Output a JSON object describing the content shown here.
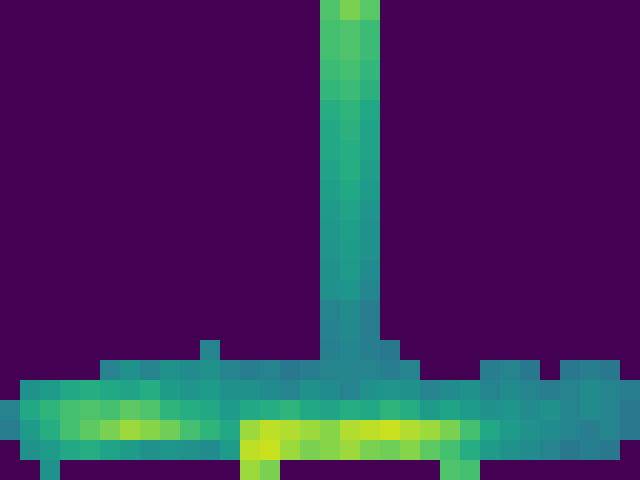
{
  "chart_data": {
    "type": "heatmap",
    "color": "viridis",
    "zlim": [
      0,
      1
    ],
    "tick_labels": false,
    "cells": [
      [
        null,
        null,
        null,
        null,
        null,
        null,
        null,
        null,
        null,
        null,
        null,
        null,
        null,
        null,
        null,
        null,
        0.72,
        0.8,
        0.74,
        null,
        null,
        null,
        null,
        null,
        null,
        null,
        null,
        null,
        null,
        null,
        null,
        null
      ],
      [
        null,
        null,
        null,
        null,
        null,
        null,
        null,
        null,
        null,
        null,
        null,
        null,
        null,
        null,
        null,
        null,
        0.7,
        0.72,
        0.68,
        null,
        null,
        null,
        null,
        null,
        null,
        null,
        null,
        null,
        null,
        null,
        null,
        null
      ],
      [
        null,
        null,
        null,
        null,
        null,
        null,
        null,
        null,
        null,
        null,
        null,
        null,
        null,
        null,
        null,
        null,
        0.7,
        0.72,
        0.68,
        null,
        null,
        null,
        null,
        null,
        null,
        null,
        null,
        null,
        null,
        null,
        null,
        null
      ],
      [
        null,
        null,
        null,
        null,
        null,
        null,
        null,
        null,
        null,
        null,
        null,
        null,
        null,
        null,
        null,
        null,
        0.68,
        0.7,
        0.66,
        null,
        null,
        null,
        null,
        null,
        null,
        null,
        null,
        null,
        null,
        null,
        null,
        null
      ],
      [
        null,
        null,
        null,
        null,
        null,
        null,
        null,
        null,
        null,
        null,
        null,
        null,
        null,
        null,
        null,
        null,
        0.66,
        0.68,
        0.64,
        null,
        null,
        null,
        null,
        null,
        null,
        null,
        null,
        null,
        null,
        null,
        null,
        null
      ],
      [
        null,
        null,
        null,
        null,
        null,
        null,
        null,
        null,
        null,
        null,
        null,
        null,
        null,
        null,
        null,
        null,
        0.62,
        0.65,
        0.6,
        null,
        null,
        null,
        null,
        null,
        null,
        null,
        null,
        null,
        null,
        null,
        null,
        null
      ],
      [
        null,
        null,
        null,
        null,
        null,
        null,
        null,
        null,
        null,
        null,
        null,
        null,
        null,
        null,
        null,
        null,
        0.6,
        0.64,
        0.58,
        null,
        null,
        null,
        null,
        null,
        null,
        null,
        null,
        null,
        null,
        null,
        null,
        null
      ],
      [
        null,
        null,
        null,
        null,
        null,
        null,
        null,
        null,
        null,
        null,
        null,
        null,
        null,
        null,
        null,
        null,
        0.6,
        0.62,
        0.58,
        null,
        null,
        null,
        null,
        null,
        null,
        null,
        null,
        null,
        null,
        null,
        null,
        null
      ],
      [
        null,
        null,
        null,
        null,
        null,
        null,
        null,
        null,
        null,
        null,
        null,
        null,
        null,
        null,
        null,
        null,
        0.58,
        0.62,
        0.56,
        null,
        null,
        null,
        null,
        null,
        null,
        null,
        null,
        null,
        null,
        null,
        null,
        null
      ],
      [
        null,
        null,
        null,
        null,
        null,
        null,
        null,
        null,
        null,
        null,
        null,
        null,
        null,
        null,
        null,
        null,
        0.56,
        0.6,
        0.55,
        null,
        null,
        null,
        null,
        null,
        null,
        null,
        null,
        null,
        null,
        null,
        null,
        null
      ],
      [
        null,
        null,
        null,
        null,
        null,
        null,
        null,
        null,
        null,
        null,
        null,
        null,
        null,
        null,
        null,
        null,
        0.55,
        0.58,
        0.52,
        null,
        null,
        null,
        null,
        null,
        null,
        null,
        null,
        null,
        null,
        null,
        null,
        null
      ],
      [
        null,
        null,
        null,
        null,
        null,
        null,
        null,
        null,
        null,
        null,
        null,
        null,
        null,
        null,
        null,
        null,
        0.53,
        0.56,
        0.5,
        null,
        null,
        null,
        null,
        null,
        null,
        null,
        null,
        null,
        null,
        null,
        null,
        null
      ],
      [
        null,
        null,
        null,
        null,
        null,
        null,
        null,
        null,
        null,
        null,
        null,
        null,
        null,
        null,
        null,
        null,
        0.52,
        0.55,
        0.5,
        null,
        null,
        null,
        null,
        null,
        null,
        null,
        null,
        null,
        null,
        null,
        null,
        null
      ],
      [
        null,
        null,
        null,
        null,
        null,
        null,
        null,
        null,
        null,
        null,
        null,
        null,
        null,
        null,
        null,
        null,
        0.5,
        0.54,
        0.48,
        null,
        null,
        null,
        null,
        null,
        null,
        null,
        null,
        null,
        null,
        null,
        null,
        null
      ],
      [
        null,
        null,
        null,
        null,
        null,
        null,
        null,
        null,
        null,
        null,
        null,
        null,
        null,
        null,
        null,
        null,
        0.5,
        0.52,
        0.46,
        null,
        null,
        null,
        null,
        null,
        null,
        null,
        null,
        null,
        null,
        null,
        null,
        null
      ],
      [
        null,
        null,
        null,
        null,
        null,
        null,
        null,
        null,
        null,
        null,
        null,
        null,
        null,
        null,
        null,
        null,
        0.45,
        0.48,
        0.42,
        null,
        null,
        null,
        null,
        null,
        null,
        null,
        null,
        null,
        null,
        null,
        null,
        null
      ],
      [
        null,
        null,
        null,
        null,
        null,
        null,
        null,
        null,
        null,
        null,
        null,
        null,
        null,
        null,
        null,
        null,
        0.44,
        0.47,
        0.42,
        null,
        null,
        null,
        null,
        null,
        null,
        null,
        null,
        null,
        null,
        null,
        null,
        null
      ],
      [
        null,
        null,
        null,
        null,
        null,
        null,
        null,
        null,
        null,
        null,
        0.45,
        null,
        null,
        null,
        null,
        null,
        0.43,
        0.46,
        0.42,
        0.4,
        null,
        null,
        null,
        null,
        null,
        null,
        null,
        null,
        null,
        null,
        null,
        null
      ],
      [
        null,
        null,
        null,
        null,
        null,
        0.45,
        0.5,
        0.45,
        0.5,
        0.48,
        0.5,
        0.45,
        0.42,
        0.45,
        0.4,
        0.42,
        0.45,
        0.45,
        0.45,
        0.42,
        0.45,
        null,
        null,
        null,
        0.42,
        0.45,
        0.4,
        null,
        0.4,
        0.42,
        0.4,
        null
      ],
      [
        null,
        0.5,
        0.55,
        0.6,
        0.62,
        0.6,
        0.58,
        0.62,
        0.55,
        0.52,
        0.55,
        0.5,
        0.5,
        0.48,
        0.45,
        0.5,
        0.48,
        0.45,
        0.5,
        0.52,
        0.5,
        0.45,
        0.48,
        0.5,
        0.45,
        0.48,
        0.45,
        0.42,
        0.45,
        0.48,
        0.45,
        0.42
      ],
      [
        0.45,
        0.6,
        0.65,
        0.7,
        0.72,
        0.7,
        0.75,
        0.72,
        0.65,
        0.62,
        0.6,
        0.55,
        0.6,
        0.62,
        0.65,
        0.6,
        0.58,
        0.62,
        0.6,
        0.65,
        0.62,
        0.55,
        0.58,
        0.55,
        0.5,
        0.52,
        0.48,
        0.5,
        0.45,
        0.48,
        0.45,
        0.4
      ],
      [
        0.42,
        0.55,
        0.62,
        0.7,
        0.75,
        0.8,
        0.85,
        0.82,
        0.78,
        0.7,
        0.65,
        0.6,
        0.85,
        0.9,
        0.88,
        0.85,
        0.82,
        0.88,
        0.9,
        0.92,
        0.88,
        0.85,
        0.8,
        0.7,
        0.6,
        0.55,
        0.5,
        0.48,
        0.45,
        0.42,
        0.45,
        0.4
      ],
      [
        null,
        0.5,
        0.55,
        0.6,
        0.62,
        0.58,
        0.55,
        0.5,
        0.52,
        0.5,
        0.48,
        0.55,
        0.9,
        0.92,
        0.85,
        0.8,
        0.82,
        0.85,
        0.8,
        0.78,
        0.82,
        0.75,
        0.7,
        0.62,
        0.55,
        0.5,
        0.48,
        0.45,
        0.4,
        0.42,
        0.4,
        null
      ],
      [
        null,
        null,
        0.5,
        null,
        null,
        null,
        null,
        null,
        null,
        null,
        null,
        null,
        0.85,
        0.8,
        null,
        null,
        null,
        null,
        null,
        null,
        null,
        null,
        0.72,
        0.7,
        null,
        null,
        null,
        null,
        null,
        null,
        null,
        null
      ]
    ]
  }
}
